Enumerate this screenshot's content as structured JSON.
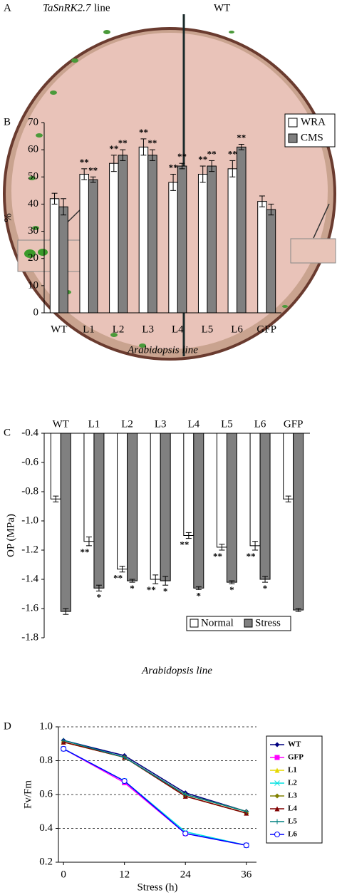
{
  "panel_a": {
    "label": "A",
    "gene": "TaSnRK2.7",
    "gene_suffix": "line",
    "right_label": "WT"
  },
  "chart_data": [
    {
      "type": "bar",
      "label": "B",
      "ylabel": "%",
      "xlabel": "Arabidopsis line",
      "categories": [
        "WT",
        "L1",
        "L2",
        "L3",
        "L4",
        "L5",
        "L6",
        "GFP"
      ],
      "series": [
        {
          "name": "WRA",
          "color": "#ffffff",
          "values": [
            42,
            51,
            55,
            61,
            48,
            51,
            53,
            41
          ],
          "errors": [
            2,
            2,
            3,
            3,
            3,
            3,
            3,
            2
          ],
          "annotations": [
            null,
            "**",
            "**",
            "**",
            "**",
            "**",
            "**",
            null
          ]
        },
        {
          "name": "CMS",
          "color": "#808080",
          "values": [
            39,
            49,
            58,
            58,
            54,
            54,
            61,
            38
          ],
          "errors": [
            3,
            1,
            2,
            2,
            1,
            2,
            1,
            2
          ],
          "annotations": [
            null,
            "**",
            "**",
            "**",
            "**",
            "**",
            "**",
            null
          ]
        }
      ],
      "ylim": [
        0,
        70
      ],
      "yticks": [
        0,
        10,
        20,
        30,
        40,
        50,
        60,
        70
      ],
      "xaxis_position": "bottom",
      "legend": "upper right"
    },
    {
      "type": "bar",
      "label": "C",
      "ylabel": "OP (MPa)",
      "xlabel": "Arabidopsis line",
      "categories": [
        "WT",
        "L1",
        "L2",
        "L3",
        "L4",
        "L5",
        "L6",
        "GFP"
      ],
      "series": [
        {
          "name": "Normal",
          "color": "#ffffff",
          "values": [
            -0.85,
            -1.14,
            -1.33,
            -1.4,
            -1.1,
            -1.18,
            -1.17,
            -0.85
          ],
          "errors": [
            0.02,
            0.03,
            0.02,
            0.03,
            0.02,
            0.02,
            0.03,
            0.02
          ],
          "annotations": [
            null,
            "**",
            "**",
            "**",
            "**",
            "**",
            "**",
            null
          ]
        },
        {
          "name": "Stress",
          "color": "#808080",
          "values": [
            -1.62,
            -1.46,
            -1.41,
            -1.41,
            -1.46,
            -1.42,
            -1.4,
            -1.61
          ],
          "errors": [
            0.02,
            0.02,
            0.01,
            0.03,
            0.01,
            0.01,
            0.02,
            0.01
          ],
          "annotations": [
            null,
            "*",
            "*",
            "*",
            "*",
            "*",
            "*",
            null
          ]
        }
      ],
      "ylim": [
        -1.8,
        -0.4
      ],
      "yticks": [
        -0.4,
        -0.6,
        -0.8,
        {
          "value": -1,
          "label": "-1.0"
        },
        -1.2,
        -1.4,
        -1.6,
        -1.8
      ],
      "xaxis_position": "top",
      "legend": "lower center"
    },
    {
      "type": "line",
      "label": "D",
      "ylabel": "Fv/Fm",
      "xlabel": "Stress (h)",
      "x": [
        0,
        12,
        24,
        36
      ],
      "xlim": [
        -1,
        38
      ],
      "xticks": [
        0,
        12,
        24,
        36
      ],
      "ylim": [
        0.2,
        1
      ],
      "yticks": [
        0.2,
        0.4,
        0.6,
        0.8,
        {
          "value": 1,
          "label": "1.0"
        }
      ],
      "grid": true,
      "legend": "right",
      "series": [
        {
          "name": "WT",
          "color": "#000080",
          "marker": "diamond",
          "values": [
            0.92,
            0.83,
            0.61,
            0.5
          ]
        },
        {
          "name": "GFP",
          "color": "#ff00ff",
          "marker": "square",
          "values": [
            0.87,
            0.67,
            0.37,
            0.3
          ]
        },
        {
          "name": "L1",
          "color": "#e6d800",
          "marker": "triangle",
          "values": [
            0.91,
            0.82,
            0.6,
            0.5
          ]
        },
        {
          "name": "L2",
          "color": "#00e0e0",
          "marker": "x",
          "values": [
            0.87,
            0.68,
            0.38,
            0.3
          ]
        },
        {
          "name": "L3",
          "color": "#808000",
          "marker": "diamond",
          "values": [
            0.91,
            0.82,
            0.59,
            0.49
          ]
        },
        {
          "name": "L4",
          "color": "#800000",
          "marker": "triangle",
          "values": [
            0.91,
            0.82,
            0.59,
            0.49
          ]
        },
        {
          "name": "L5",
          "color": "#008080",
          "marker": "plus",
          "values": [
            0.92,
            0.82,
            0.6,
            0.5
          ]
        },
        {
          "name": "L6",
          "color": "#0000ff",
          "marker": "circle",
          "values": [
            0.87,
            0.68,
            0.37,
            0.3
          ]
        }
      ]
    }
  ]
}
